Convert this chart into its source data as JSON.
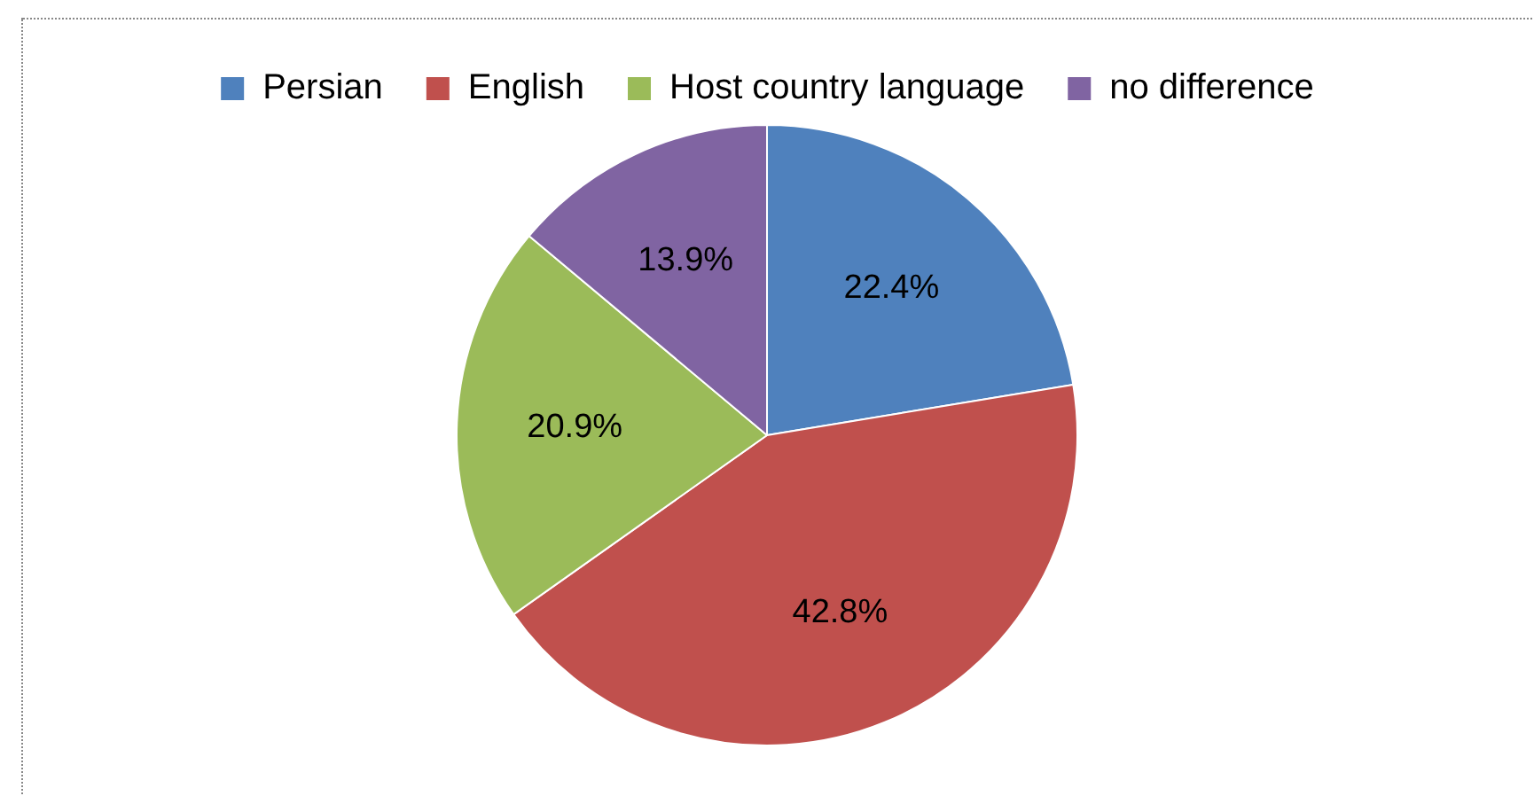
{
  "chart_data": {
    "type": "pie",
    "categories": [
      "Persian",
      "English",
      "Host country language",
      "no difference"
    ],
    "values": [
      22.4,
      42.8,
      20.9,
      13.9
    ],
    "colors": [
      "#4f81bd",
      "#c0504d",
      "#9bbb59",
      "#8064a2"
    ],
    "value_labels": [
      "22.4%",
      "42.8%",
      "20.9%",
      "13.9%"
    ],
    "legend": "top"
  }
}
